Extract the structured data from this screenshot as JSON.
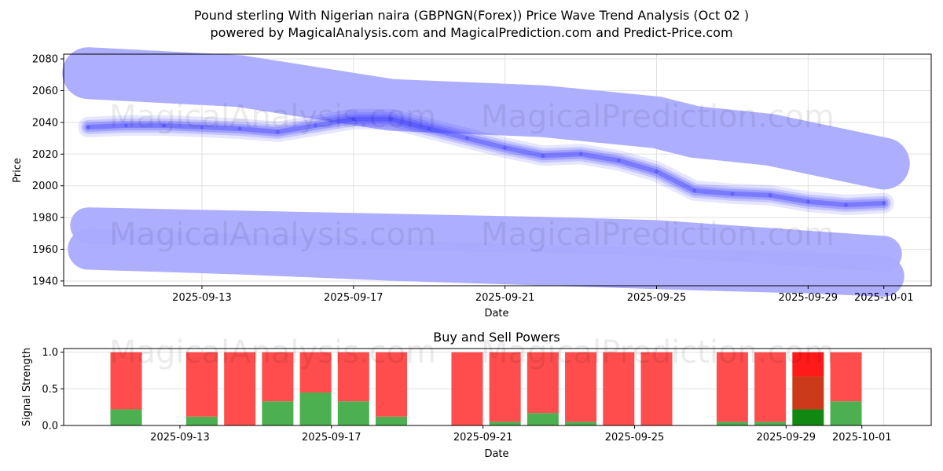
{
  "header": {
    "title_line1": "Pound sterling With Nigerian naira (GBPNGN(Forex)) Price Wave Trend Analysis (Oct 02 )",
    "title_line2": "powered by MagicalAnalysis.com and MagicalPrediction.com and Predict-Price.com"
  },
  "watermarks": [
    "MagicalAnalysis.com",
    "MagicalPrediction.com"
  ],
  "colors": {
    "band": "#aaaaff",
    "wave": "#3333ff",
    "buy": "#4caf50",
    "sell": "#ff4d4d",
    "buy_strong": "#118811",
    "sell_strong": "#ff1a1a",
    "mixed": "#cc3a1a",
    "grid": "#e0e0e0"
  },
  "chart_data": [
    {
      "type": "line",
      "title": "",
      "xlabel": "Date",
      "ylabel": "Price",
      "ylim": [
        1937,
        2083
      ],
      "xlim": [
        "2025-09-09",
        "2025-10-02"
      ],
      "grid": true,
      "yticks": [
        1940,
        1960,
        1980,
        2000,
        2020,
        2040,
        2060,
        2080
      ],
      "xticks": [
        "2025-09-13",
        "2025-09-17",
        "2025-09-21",
        "2025-09-25",
        "2025-09-29",
        "2025-10-01"
      ],
      "bands": [
        {
          "name": "upper-band",
          "points": [
            [
              "2025-09-10",
              2071
            ],
            [
              "2025-09-14",
              2066
            ],
            [
              "2025-09-18",
              2051
            ],
            [
              "2025-09-22",
              2047
            ],
            [
              "2025-09-25",
              2040
            ],
            [
              "2025-09-26",
              2034
            ],
            [
              "2025-09-28",
              2029
            ],
            [
              "2025-10-01",
              2014
            ]
          ]
        },
        {
          "name": "lower-band",
          "points": [
            [
              "2025-09-10",
              1975
            ],
            [
              "2025-09-14",
              1973
            ],
            [
              "2025-09-18",
              1971
            ],
            [
              "2025-09-22",
              1969
            ],
            [
              "2025-09-25",
              1967
            ],
            [
              "2025-09-28",
              1962
            ],
            [
              "2025-10-01",
              1957
            ]
          ]
        },
        {
          "name": "bottom-band",
          "points": [
            [
              "2025-09-10",
              1960
            ],
            [
              "2025-09-14",
              1957
            ],
            [
              "2025-09-18",
              1953
            ],
            [
              "2025-09-22",
              1950
            ],
            [
              "2025-09-26",
              1947
            ],
            [
              "2025-09-29",
              1945
            ],
            [
              "2025-10-01",
              1943
            ]
          ]
        }
      ],
      "series": [
        {
          "name": "wave-trend",
          "x": [
            "2025-09-10",
            "2025-09-11",
            "2025-09-12",
            "2025-09-13",
            "2025-09-14",
            "2025-09-15",
            "2025-09-16",
            "2025-09-17",
            "2025-09-18",
            "2025-09-19",
            "2025-09-20",
            "2025-09-21",
            "2025-09-22",
            "2025-09-23",
            "2025-09-24",
            "2025-09-25",
            "2025-09-26",
            "2025-09-27",
            "2025-09-28",
            "2025-09-29",
            "2025-09-30",
            "2025-10-01"
          ],
          "values": [
            2037,
            2038,
            2038,
            2037,
            2036,
            2034,
            2038,
            2042,
            2042,
            2036,
            2030,
            2024,
            2019,
            2020,
            2016,
            2009,
            1997,
            1995,
            1994,
            1990,
            1988,
            1989
          ]
        }
      ]
    },
    {
      "type": "bar",
      "title": "Buy and Sell Powers",
      "xlabel": "Date",
      "ylabel": "Signal Strength",
      "ylim": [
        0,
        1.05
      ],
      "yticks": [
        0.0,
        0.5,
        1.0
      ],
      "xticks": [
        "2025-09-13",
        "2025-09-17",
        "2025-09-21",
        "2025-09-25",
        "2025-09-29",
        "2025-10-01"
      ],
      "categories": [
        "2025-09-11",
        "2025-09-13",
        "2025-09-14",
        "2025-09-15",
        "2025-09-16",
        "2025-09-17",
        "2025-09-18",
        "2025-09-20",
        "2025-09-21",
        "2025-09-22",
        "2025-09-23",
        "2025-09-24",
        "2025-09-25",
        "2025-09-27",
        "2025-09-28",
        "2025-09-29",
        "2025-09-30"
      ],
      "series": [
        {
          "name": "buy",
          "values": [
            0.22,
            0.12,
            0.0,
            0.33,
            0.45,
            0.33,
            0.12,
            0.0,
            0.05,
            0.17,
            0.05,
            0.0,
            0.0,
            0.05,
            0.05,
            0.22,
            0.33
          ]
        },
        {
          "name": "sell",
          "values": [
            0.78,
            0.88,
            1.0,
            0.67,
            0.55,
            0.67,
            0.88,
            1.0,
            0.95,
            0.83,
            0.95,
            1.0,
            1.0,
            0.95,
            0.95,
            0.78,
            0.67
          ]
        }
      ],
      "highlight": {
        "date": "2025-09-29",
        "mixed_to": 0.67
      }
    }
  ]
}
